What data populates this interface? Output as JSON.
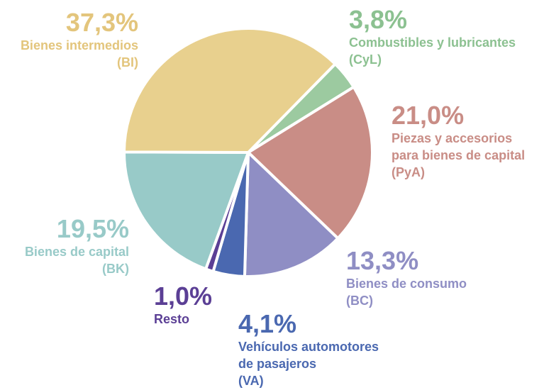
{
  "chart_data": {
    "type": "pie",
    "categories": [
      "Combustibles y lubricantes",
      "Piezas y accesorios para bienes de capital",
      "Bienes de consumo",
      "Vehículos automotores de pasajeros",
      "Resto",
      "Bienes de capital",
      "Bienes intermedios"
    ],
    "abbreviations": [
      "(CyL)",
      "(PyA)",
      "(BC)",
      "(VA)",
      null,
      "(BK)",
      "(BI)"
    ],
    "values": [
      3.8,
      21.0,
      13.3,
      4.1,
      1.0,
      19.5,
      37.3
    ],
    "value_labels": [
      "3,8%",
      "21,0%",
      "13,3%",
      "4,1%",
      "1,0%",
      "19,5%",
      "37,3%"
    ],
    "colors": [
      "#9ccaa0",
      "#c98d86",
      "#8f8ec4",
      "#4a68b0",
      "#5b3f95",
      "#98cac8",
      "#e8d08e"
    ]
  }
}
